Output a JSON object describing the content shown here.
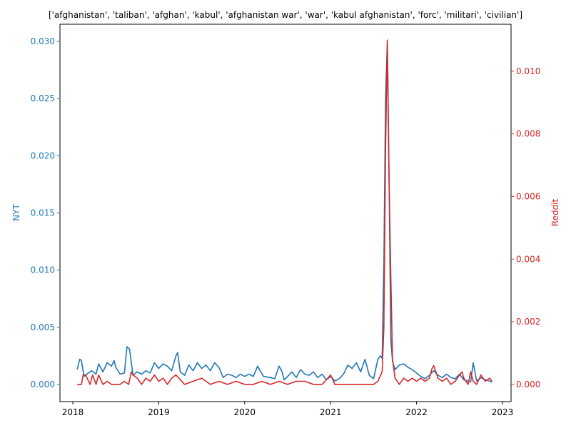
{
  "chart_data": {
    "type": "line",
    "title": "['afghanistan', 'taliban', 'afghan', 'kabul', 'afghanistan war', 'war', 'kabul afghanistan', 'forc', 'militari', 'civilian']",
    "xlabel": "",
    "x_ticks": [
      "2018",
      "2019",
      "2020",
      "2021",
      "2022",
      "2023"
    ],
    "xlim": [
      2017.85,
      2023.1
    ],
    "grid": false,
    "axes": [
      {
        "side": "left",
        "ylabel": "NYT",
        "color": "#1f77b4",
        "ylim": [
          -0.0015,
          0.0315
        ],
        "y_ticks": [
          "0.000",
          "0.005",
          "0.010",
          "0.015",
          "0.020",
          "0.025",
          "0.030"
        ]
      },
      {
        "side": "right",
        "ylabel": "Reddit",
        "color": "#d62728",
        "ylim": [
          -0.00055,
          0.0115
        ],
        "y_ticks": [
          "0.000",
          "0.002",
          "0.004",
          "0.006",
          "0.008",
          "0.010"
        ]
      }
    ],
    "series": [
      {
        "name": "NYT",
        "axis": "left",
        "color": "#1f77b4",
        "x": [
          2018.05,
          2018.08,
          2018.1,
          2018.13,
          2018.18,
          2018.22,
          2018.27,
          2018.3,
          2018.35,
          2018.4,
          2018.45,
          2018.48,
          2018.5,
          2018.55,
          2018.6,
          2018.63,
          2018.66,
          2018.7,
          2018.75,
          2018.8,
          2018.85,
          2018.9,
          2018.95,
          2019.0,
          2019.05,
          2019.1,
          2019.15,
          2019.2,
          2019.22,
          2019.25,
          2019.3,
          2019.35,
          2019.4,
          2019.45,
          2019.5,
          2019.55,
          2019.6,
          2019.65,
          2019.7,
          2019.75,
          2019.8,
          2019.85,
          2019.9,
          2019.95,
          2020.0,
          2020.05,
          2020.1,
          2020.15,
          2020.18,
          2020.22,
          2020.3,
          2020.35,
          2020.4,
          2020.43,
          2020.46,
          2020.5,
          2020.55,
          2020.6,
          2020.65,
          2020.7,
          2020.75,
          2020.8,
          2020.85,
          2020.9,
          2020.95,
          2021.0,
          2021.05,
          2021.1,
          2021.15,
          2021.2,
          2021.25,
          2021.3,
          2021.35,
          2021.4,
          2021.45,
          2021.5,
          2021.55,
          2021.58,
          2021.6,
          2021.62,
          2021.64,
          2021.66,
          2021.68,
          2021.7,
          2021.72,
          2021.75,
          2021.8,
          2021.85,
          2021.9,
          2021.95,
          2022.0,
          2022.05,
          2022.1,
          2022.15,
          2022.2,
          2022.25,
          2022.3,
          2022.35,
          2022.4,
          2022.45,
          2022.5,
          2022.55,
          2022.6,
          2022.63,
          2022.66,
          2022.7,
          2022.75,
          2022.8,
          2022.85,
          2022.88
        ],
        "values": [
          0.0013,
          0.0022,
          0.0021,
          0.0007,
          0.001,
          0.0012,
          0.0009,
          0.0018,
          0.0011,
          0.0019,
          0.0016,
          0.0021,
          0.0015,
          0.0009,
          0.001,
          0.0033,
          0.0031,
          0.0008,
          0.0011,
          0.0009,
          0.0012,
          0.001,
          0.0019,
          0.0014,
          0.0018,
          0.0016,
          0.0012,
          0.0025,
          0.0028,
          0.0011,
          0.0008,
          0.0017,
          0.0012,
          0.0019,
          0.0014,
          0.0017,
          0.0012,
          0.0019,
          0.0015,
          0.0006,
          0.0009,
          0.0008,
          0.0006,
          0.0009,
          0.0007,
          0.0009,
          0.0007,
          0.0016,
          0.0012,
          0.0007,
          0.0006,
          0.0005,
          0.0016,
          0.0012,
          0.0004,
          0.0007,
          0.0011,
          0.0006,
          0.0013,
          0.0009,
          0.0008,
          0.0011,
          0.0006,
          0.0009,
          0.0004,
          0.0007,
          0.0003,
          0.0005,
          0.0009,
          0.0017,
          0.0014,
          0.0019,
          0.0011,
          0.0022,
          0.0008,
          0.0005,
          0.0022,
          0.0025,
          0.0023,
          0.0105,
          0.025,
          0.03,
          0.018,
          0.004,
          0.002,
          0.0013,
          0.0017,
          0.0018,
          0.0015,
          0.0013,
          0.001,
          0.0007,
          0.0005,
          0.0008,
          0.0012,
          0.0008,
          0.0006,
          0.0009,
          0.0006,
          0.0005,
          0.0009,
          0.0004,
          0.0003,
          0.0002,
          0.0019,
          0.0003,
          0.0006,
          0.0004,
          0.0003,
          0.0002
        ]
      },
      {
        "name": "Reddit",
        "axis": "right",
        "color": "#d62728",
        "x": [
          2018.05,
          2018.1,
          2018.12,
          2018.15,
          2018.2,
          2018.23,
          2018.27,
          2018.3,
          2018.35,
          2018.4,
          2018.45,
          2018.5,
          2018.55,
          2018.6,
          2018.65,
          2018.68,
          2018.7,
          2018.75,
          2018.8,
          2018.85,
          2018.9,
          2018.95,
          2019.0,
          2019.05,
          2019.1,
          2019.15,
          2019.2,
          2019.3,
          2019.4,
          2019.5,
          2019.6,
          2019.7,
          2019.8,
          2019.9,
          2020.0,
          2020.1,
          2020.2,
          2020.3,
          2020.4,
          2020.5,
          2020.6,
          2020.7,
          2020.8,
          2020.9,
          2021.0,
          2021.05,
          2021.1,
          2021.2,
          2021.3,
          2021.4,
          2021.45,
          2021.5,
          2021.55,
          2021.6,
          2021.62,
          2021.64,
          2021.66,
          2021.68,
          2021.7,
          2021.72,
          2021.75,
          2021.8,
          2021.85,
          2021.9,
          2021.95,
          2022.0,
          2022.05,
          2022.1,
          2022.15,
          2022.18,
          2022.2,
          2022.25,
          2022.3,
          2022.35,
          2022.4,
          2022.45,
          2022.5,
          2022.53,
          2022.55,
          2022.6,
          2022.63,
          2022.66,
          2022.7,
          2022.75,
          2022.8,
          2022.85,
          2022.88
        ],
        "values": [
          0.0,
          0.0,
          0.0003,
          0.0003,
          0.0,
          0.0003,
          0.0,
          0.0003,
          0.0,
          0.0001,
          0.0,
          0.0,
          0.0,
          0.0001,
          0.0,
          0.0004,
          0.0003,
          0.0002,
          0.0,
          0.0002,
          0.0001,
          0.0003,
          0.0001,
          0.0002,
          0.0,
          0.0002,
          0.0003,
          0.0,
          0.0001,
          0.0002,
          0.0,
          0.0001,
          0.0,
          0.0001,
          0.0,
          0.0,
          0.0001,
          0.0,
          0.0001,
          0.0,
          0.0001,
          0.0001,
          0.0,
          0.0,
          0.0003,
          0.0,
          0.0,
          0.0,
          0.0,
          0.0,
          0.0,
          0.0,
          0.0001,
          0.0004,
          0.0018,
          0.0075,
          0.011,
          0.0065,
          0.0035,
          0.0008,
          0.0002,
          0.0,
          0.0002,
          0.0001,
          0.0002,
          0.0001,
          0.0002,
          0.0001,
          0.0002,
          0.0005,
          0.0006,
          0.0002,
          0.0001,
          0.0002,
          0.0,
          0.0001,
          0.0003,
          0.0004,
          0.0002,
          0.0,
          0.0004,
          0.0001,
          0.0,
          0.0003,
          0.0001,
          0.0002,
          0.0001
        ]
      }
    ]
  }
}
